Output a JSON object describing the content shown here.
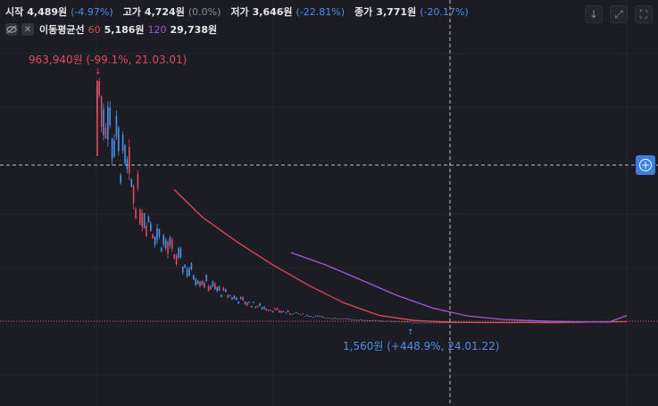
{
  "ohlc": {
    "open_label": "시작",
    "open_value": "4,489원",
    "open_change": "(-4.97%)",
    "high_label": "고가",
    "high_value": "4,724원",
    "high_change": "(0.0%)",
    "low_label": "저가",
    "low_value": "3,646원",
    "low_change": "(-22.81%)",
    "close_label": "종가",
    "close_value": "3,771원",
    "close_change": "(-20.17%)"
  },
  "ma": {
    "visibility_icon": "eye-slash-icon",
    "remove_icon": "close-icon",
    "title": "이동평균선",
    "period_60": "60",
    "value_60": "5,186원",
    "period_120": "120",
    "value_120": "29,738원"
  },
  "toolbar": {
    "icons": [
      "download-icon",
      "expand-icon",
      "fullscreen-icon"
    ],
    "download_glyph": "↓",
    "expand_glyph": "⤢",
    "fullscreen_glyph": "⛶"
  },
  "add_button": {
    "icon": "plus-circle-icon",
    "glyph": "+"
  },
  "annotations": {
    "high": "963,940원 (-99.1%, 21.03.01)",
    "low": "1,560원 (+448.9%, 24.01.22)"
  },
  "colors": {
    "background": "#1c1c24",
    "up": "#e04a5a",
    "down": "#4d8fe6",
    "ma60": "#e04a5a",
    "ma120": "#a15ad6",
    "accent": "#3b7fe0"
  },
  "chart_data": {
    "type": "candlestick",
    "x_range": [
      "21.03.01",
      "24.06"
    ],
    "y_range": [
      0,
      1100000
    ],
    "y_scale": "linear",
    "grid": true,
    "current_price": 3771,
    "high_point": {
      "value": 963940,
      "date": "21.03.01"
    },
    "low_point": {
      "value": 1560,
      "date": "24.01.22"
    },
    "series": [
      {
        "name": "60",
        "type": "line",
        "color": "#e04a5a",
        "values": [
          [
            0.22,
            530000
          ],
          [
            0.3,
            420000
          ],
          [
            0.4,
            320000
          ],
          [
            0.5,
            230000
          ],
          [
            0.6,
            150000
          ],
          [
            0.7,
            80000
          ],
          [
            0.8,
            30000
          ],
          [
            0.9,
            10000
          ],
          [
            1.0,
            3000
          ],
          [
            1.1,
            1800
          ],
          [
            1.2,
            1600
          ],
          [
            1.3,
            1560
          ],
          [
            1.4,
            3800
          ],
          [
            1.5,
            5186
          ]
        ]
      },
      {
        "name": "120",
        "type": "line",
        "color": "#a15ad6",
        "values": [
          [
            0.55,
            280000
          ],
          [
            0.65,
            230000
          ],
          [
            0.75,
            170000
          ],
          [
            0.85,
            110000
          ],
          [
            0.95,
            60000
          ],
          [
            1.05,
            28000
          ],
          [
            1.15,
            14000
          ],
          [
            1.25,
            8000
          ],
          [
            1.35,
            5000
          ],
          [
            1.45,
            3500
          ],
          [
            1.5,
            29738
          ]
        ]
      }
    ]
  }
}
